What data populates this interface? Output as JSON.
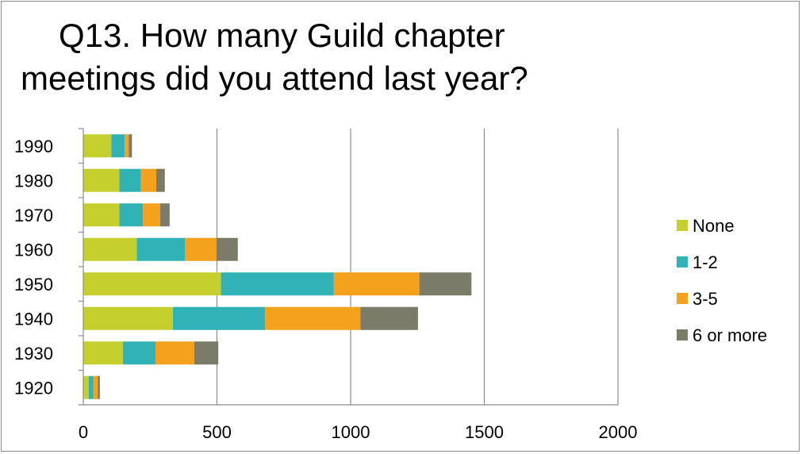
{
  "chart_data": {
    "type": "bar",
    "orientation": "horizontal",
    "stacked": true,
    "title": "Q13. How many Guild chapter meetings did you attend last year?",
    "title_lines": [
      "Q13. How many Guild chapter",
      "meetings did you attend last year?"
    ],
    "categories": [
      "1990",
      "1980",
      "1970",
      "1960",
      "1950",
      "1940",
      "1930",
      "1920"
    ],
    "series": [
      {
        "name": "None",
        "color": "#c5d02e",
        "values": [
          105,
          135,
          135,
          200,
          515,
          335,
          148,
          20
        ]
      },
      {
        "name": "1-2",
        "color": "#31b2b7",
        "values": [
          50,
          80,
          88,
          180,
          422,
          345,
          122,
          17
        ]
      },
      {
        "name": "3-5",
        "color": "#f4a11e",
        "values": [
          15,
          58,
          65,
          118,
          320,
          357,
          145,
          17
        ]
      },
      {
        "name": "6 or more",
        "color": "#7b7b69",
        "values": [
          12,
          32,
          35,
          80,
          195,
          215,
          90,
          8
        ]
      }
    ],
    "xlim": [
      0,
      2000
    ],
    "xticks": [
      "0",
      "500",
      "1000",
      "1500",
      "2000"
    ],
    "grid": "vertical",
    "legend_position": "right"
  }
}
